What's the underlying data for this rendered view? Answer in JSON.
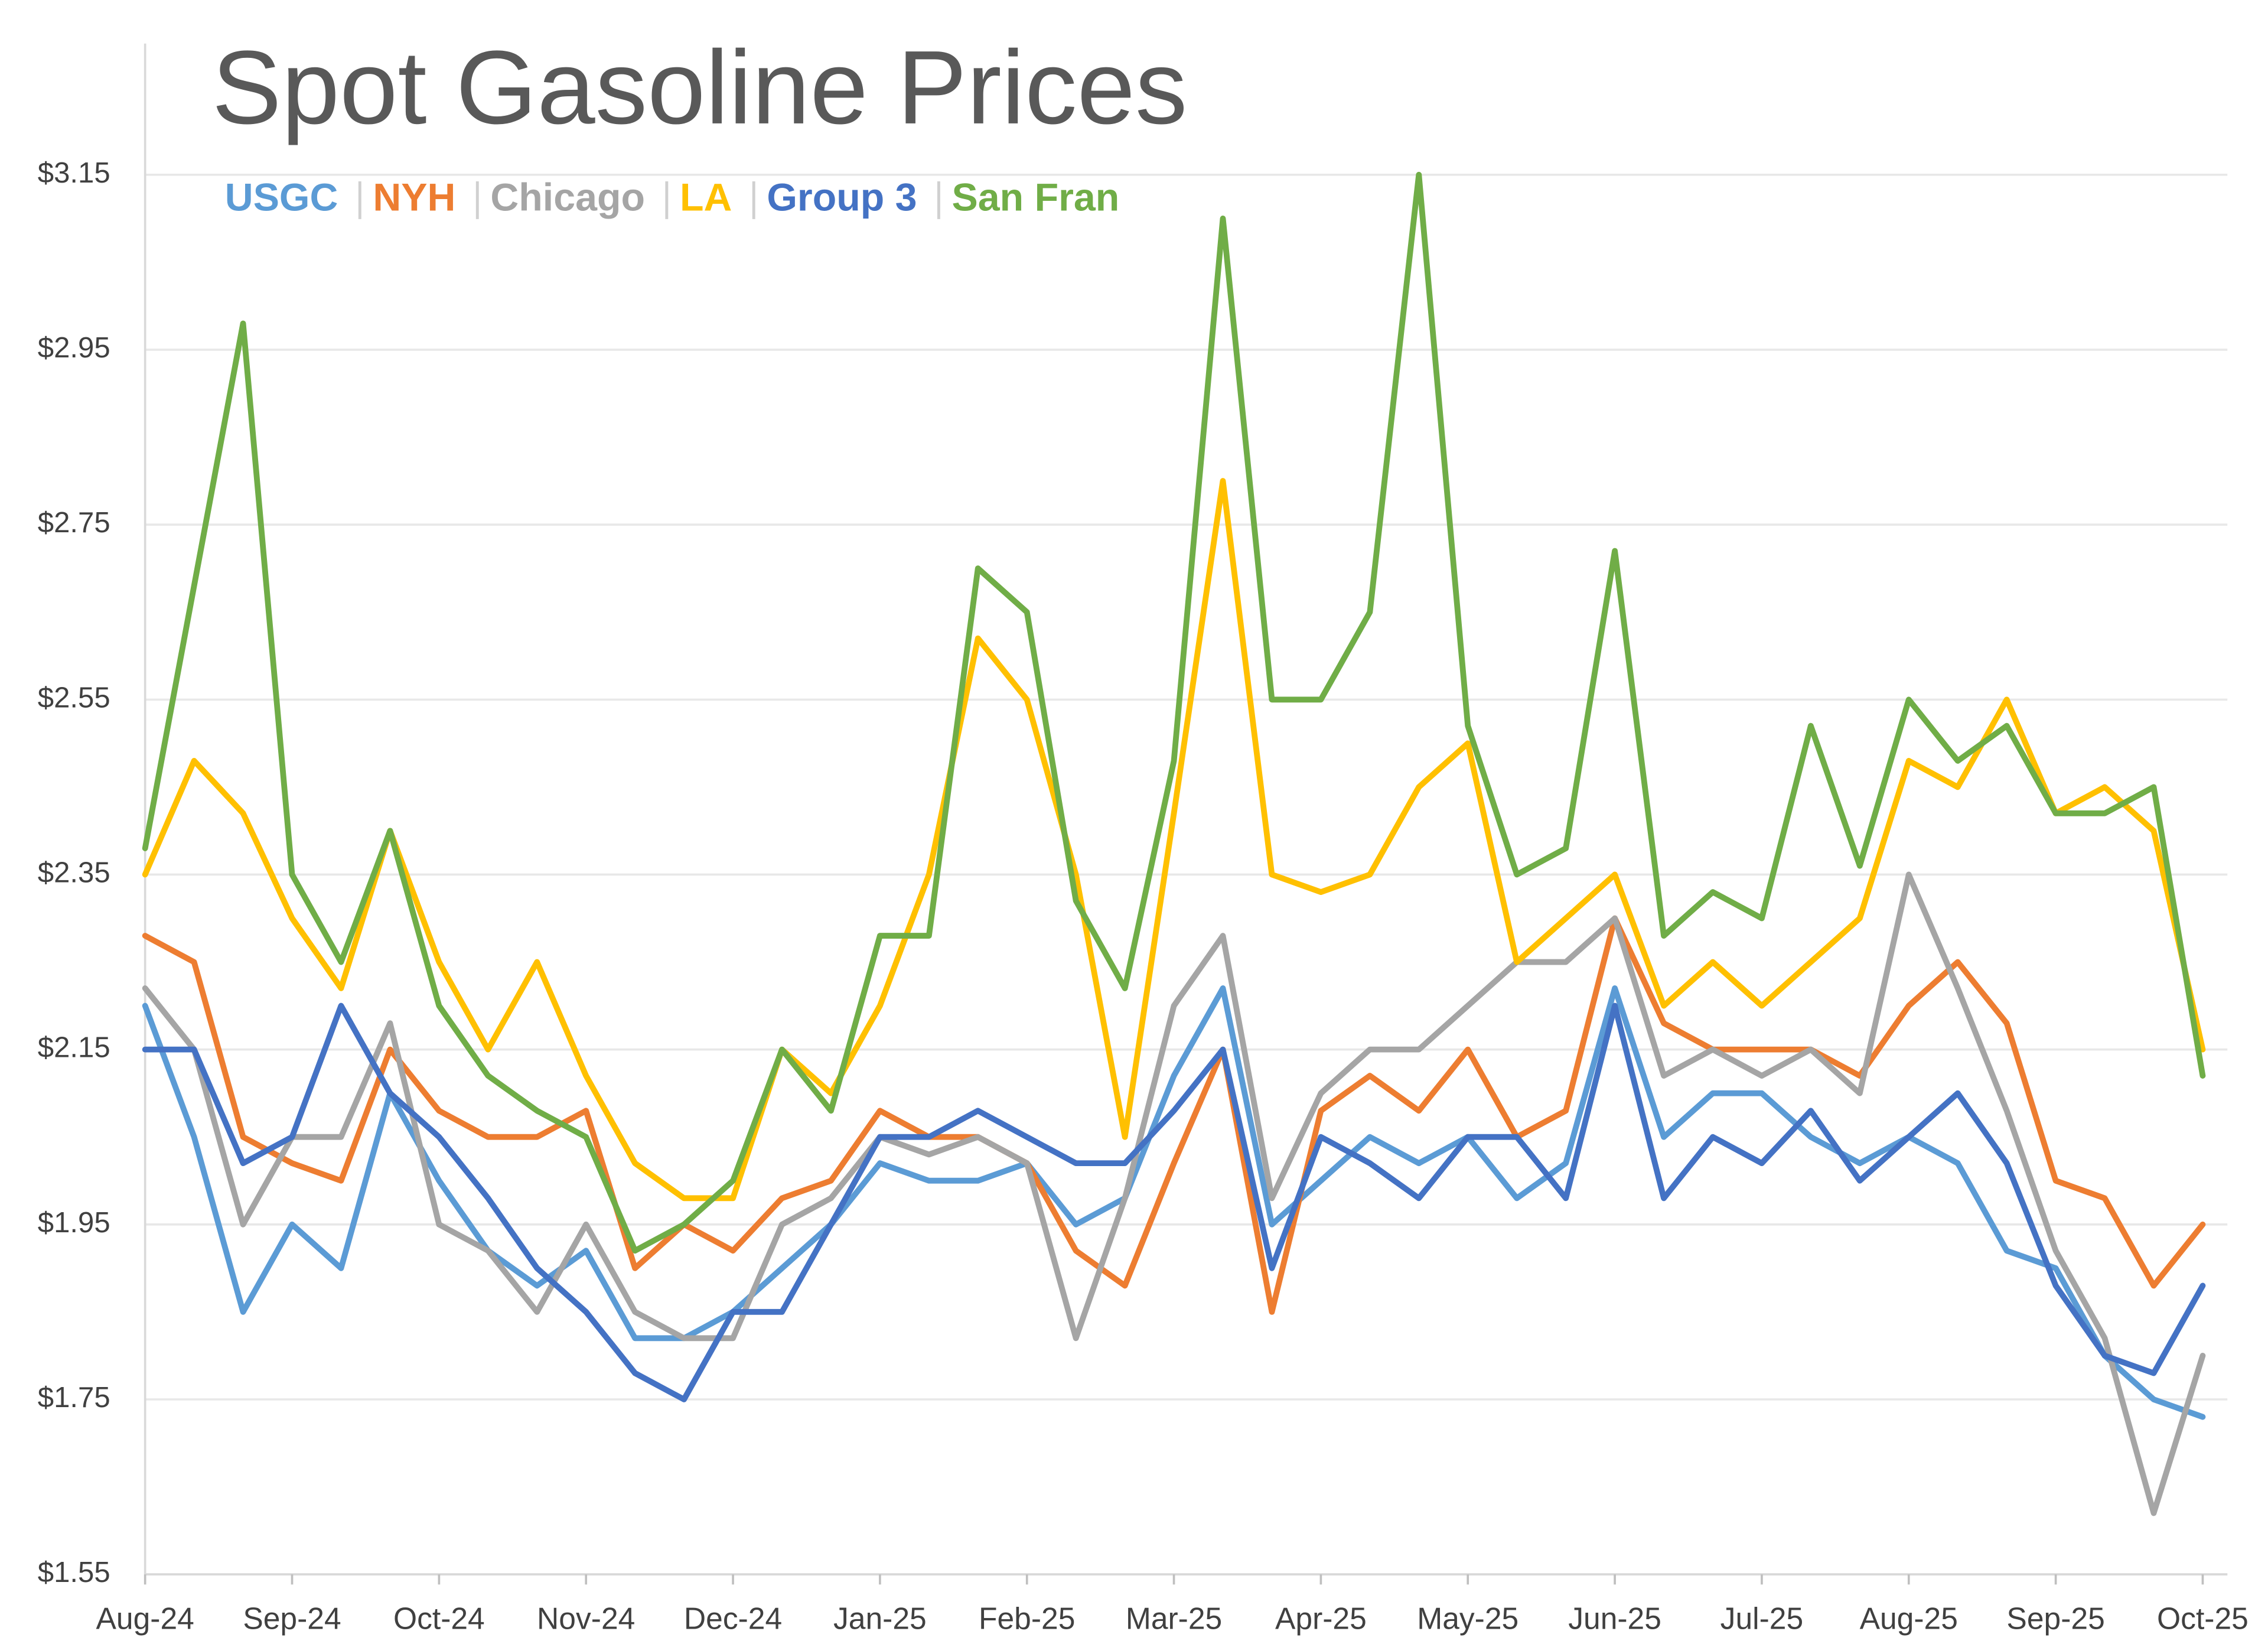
{
  "chart_data": {
    "type": "line",
    "title": "Spot Gasoline Prices",
    "categories": [
      "Aug-24",
      null,
      null,
      "Sep-24",
      null,
      null,
      "Oct-24",
      null,
      null,
      "Nov-24",
      null,
      null,
      "Dec-24",
      null,
      null,
      "Jan-25",
      null,
      null,
      "Feb-25",
      null,
      null,
      "Mar-25",
      null,
      null,
      "Apr-25",
      null,
      null,
      "May-25",
      null,
      null,
      "Jun-25",
      null,
      null,
      "Jul-25",
      null,
      null,
      "Aug-25",
      null,
      null,
      "Sep-25",
      null,
      null,
      "Oct-25"
    ],
    "series": [
      {
        "name": "USGC",
        "color": "#5b9bd5",
        "values": [
          2.2,
          2.05,
          1.85,
          1.95,
          1.9,
          2.1,
          2.0,
          1.92,
          1.88,
          1.92,
          1.82,
          1.82,
          1.85,
          1.9,
          1.95,
          2.02,
          2.0,
          2.0,
          2.02,
          1.95,
          1.98,
          2.12,
          2.22,
          1.95,
          2.0,
          2.05,
          2.02,
          2.05,
          1.98,
          2.02,
          2.22,
          2.05,
          2.1,
          2.1,
          2.05,
          2.02,
          2.05,
          2.02,
          1.92,
          1.9,
          1.8,
          1.75,
          1.73
        ]
      },
      {
        "name": "NYH",
        "color": "#ed7d31",
        "values": [
          2.28,
          2.25,
          2.05,
          2.02,
          2.0,
          2.15,
          2.08,
          2.05,
          2.05,
          2.08,
          1.9,
          1.95,
          1.92,
          1.98,
          2.0,
          2.08,
          2.05,
          2.05,
          2.02,
          1.92,
          1.88,
          2.02,
          2.15,
          1.85,
          2.08,
          2.12,
          2.08,
          2.15,
          2.05,
          2.08,
          2.3,
          2.18,
          2.15,
          2.15,
          2.15,
          2.12,
          2.2,
          2.25,
          2.18,
          2.0,
          1.98,
          1.88,
          1.95
        ]
      },
      {
        "name": "Chicago",
        "color": "#a5a5a5",
        "values": [
          2.22,
          2.15,
          1.95,
          2.05,
          2.05,
          2.18,
          1.95,
          1.92,
          1.85,
          1.95,
          1.85,
          1.82,
          1.82,
          1.95,
          1.98,
          2.05,
          2.03,
          2.05,
          2.02,
          1.82,
          1.98,
          2.2,
          2.28,
          1.98,
          2.1,
          2.15,
          2.15,
          2.2,
          2.25,
          2.25,
          2.3,
          2.12,
          2.15,
          2.12,
          2.15,
          2.1,
          2.35,
          2.22,
          2.08,
          1.92,
          1.82,
          1.62,
          1.8
        ]
      },
      {
        "name": "LA",
        "color": "#ffc000",
        "values": [
          2.35,
          2.48,
          2.42,
          2.3,
          2.22,
          2.4,
          2.25,
          2.15,
          2.25,
          2.12,
          2.02,
          1.98,
          1.98,
          2.15,
          2.1,
          2.2,
          2.35,
          2.62,
          2.55,
          2.35,
          2.05,
          2.42,
          2.8,
          2.35,
          2.33,
          2.35,
          2.45,
          2.5,
          2.25,
          2.3,
          2.35,
          2.2,
          2.25,
          2.2,
          2.25,
          2.3,
          2.48,
          2.45,
          2.55,
          2.42,
          2.45,
          2.4,
          2.15
        ]
      },
      {
        "name": "Group 3",
        "color": "#4472c4",
        "values": [
          2.15,
          2.15,
          2.02,
          2.05,
          2.2,
          2.1,
          2.05,
          1.98,
          1.9,
          1.85,
          1.78,
          1.75,
          1.85,
          1.85,
          1.95,
          2.05,
          2.05,
          2.08,
          2.05,
          2.02,
          2.02,
          2.08,
          2.15,
          1.9,
          2.05,
          2.02,
          1.98,
          2.05,
          2.05,
          1.98,
          2.2,
          1.98,
          2.05,
          2.02,
          2.08,
          2.0,
          2.05,
          2.1,
          2.02,
          1.88,
          1.8,
          1.78,
          1.88
        ]
      },
      {
        "name": "San Fran",
        "color": "#70ad47",
        "values": [
          2.38,
          2.68,
          2.98,
          2.35,
          2.25,
          2.4,
          2.2,
          2.12,
          2.08,
          2.05,
          1.92,
          1.95,
          2.0,
          2.15,
          2.08,
          2.28,
          2.28,
          2.7,
          2.65,
          2.32,
          2.22,
          2.48,
          3.1,
          2.55,
          2.55,
          2.65,
          3.15,
          2.52,
          2.35,
          2.38,
          2.72,
          2.28,
          2.33,
          2.3,
          2.52,
          2.36,
          2.55,
          2.48,
          2.52,
          2.42,
          2.42,
          2.45,
          2.12
        ]
      }
    ],
    "ylim": [
      1.55,
      3.3
    ],
    "yticks": [
      {
        "value": 1.55,
        "label": "$1.55"
      },
      {
        "value": 1.75,
        "label": "$1.75"
      },
      {
        "value": 1.95,
        "label": "$1.95"
      },
      {
        "value": 2.15,
        "label": "$2.15"
      },
      {
        "value": 2.35,
        "label": "$2.35"
      },
      {
        "value": 2.55,
        "label": "$2.55"
      },
      {
        "value": 2.75,
        "label": "$2.75"
      },
      {
        "value": 2.95,
        "label": "$2.95"
      },
      {
        "value": 3.15,
        "label": "$3.15"
      }
    ],
    "grid": true,
    "legend": "top"
  }
}
